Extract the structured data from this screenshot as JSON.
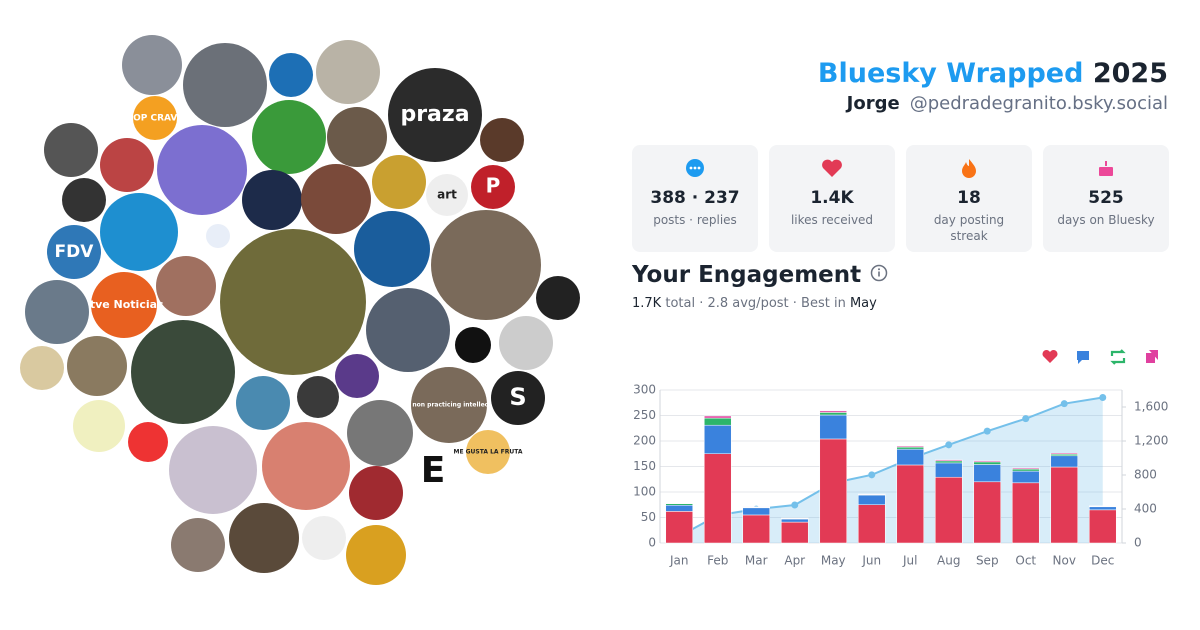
{
  "header": {
    "title": "Bluesky Wrapped",
    "year": "2025",
    "name": "Jorge",
    "handle": "@pedradegranito.bsky.social"
  },
  "stats": [
    {
      "value": "388 · 237",
      "label": "posts · replies"
    },
    {
      "value": "1.4K",
      "label": "likes received"
    },
    {
      "value": "18",
      "label": "day posting streak"
    },
    {
      "value": "525",
      "label": "days on Bluesky"
    }
  ],
  "engagement": {
    "title": "Your Engagement",
    "total": "1.7K",
    "summary": "total · 2.8 avg/post · Best in",
    "best": "May"
  },
  "avatars": [
    "praza",
    "POP CRAVE",
    "art",
    "P",
    "FDV",
    "rtve Noticias",
    "as a non practicing intellectual",
    "S",
    "ME GUSTA LA FRUTA",
    "E"
  ],
  "chart_data": {
    "type": "bar",
    "stacked": true,
    "categories": [
      "Jan",
      "Feb",
      "Mar",
      "Apr",
      "May",
      "Jun",
      "Jul",
      "Aug",
      "Sep",
      "Oct",
      "Nov",
      "Dec"
    ],
    "series": [
      {
        "color": "#e23a55",
        "values": [
          62,
          175,
          55,
          41,
          204,
          75,
          153,
          129,
          120,
          118,
          149,
          65
        ]
      },
      {
        "color": "#3a82dd",
        "values": [
          12,
          56,
          14,
          6,
          47,
          19,
          31,
          28,
          34,
          23,
          22,
          6
        ]
      },
      {
        "color": "#2cb56a",
        "values": [
          3,
          14,
          1,
          1,
          5,
          1,
          4,
          4,
          5,
          4,
          3,
          1
        ]
      },
      {
        "color": "#e0409f",
        "values": [
          1,
          4,
          1,
          1,
          3,
          1,
          2,
          2,
          2,
          2,
          2,
          1
        ]
      },
      {
        "type": "line",
        "axis": "y2",
        "color": "#74c0ea",
        "area": true,
        "values": [
          78,
          327,
          398,
          447,
          706,
          802,
          992,
          1155,
          1316,
          1463,
          1639,
          1712
        ]
      }
    ],
    "ylim": [
      0,
      300
    ],
    "yticks": [
      0,
      50,
      100,
      150,
      200,
      250,
      300
    ],
    "y2lim": [
      0,
      1800
    ],
    "y2ticks": [
      0,
      400,
      800,
      {
        "value": 1200,
        "label": "1,200"
      },
      {
        "value": 1600,
        "label": "1,600"
      }
    ],
    "grid": true
  }
}
